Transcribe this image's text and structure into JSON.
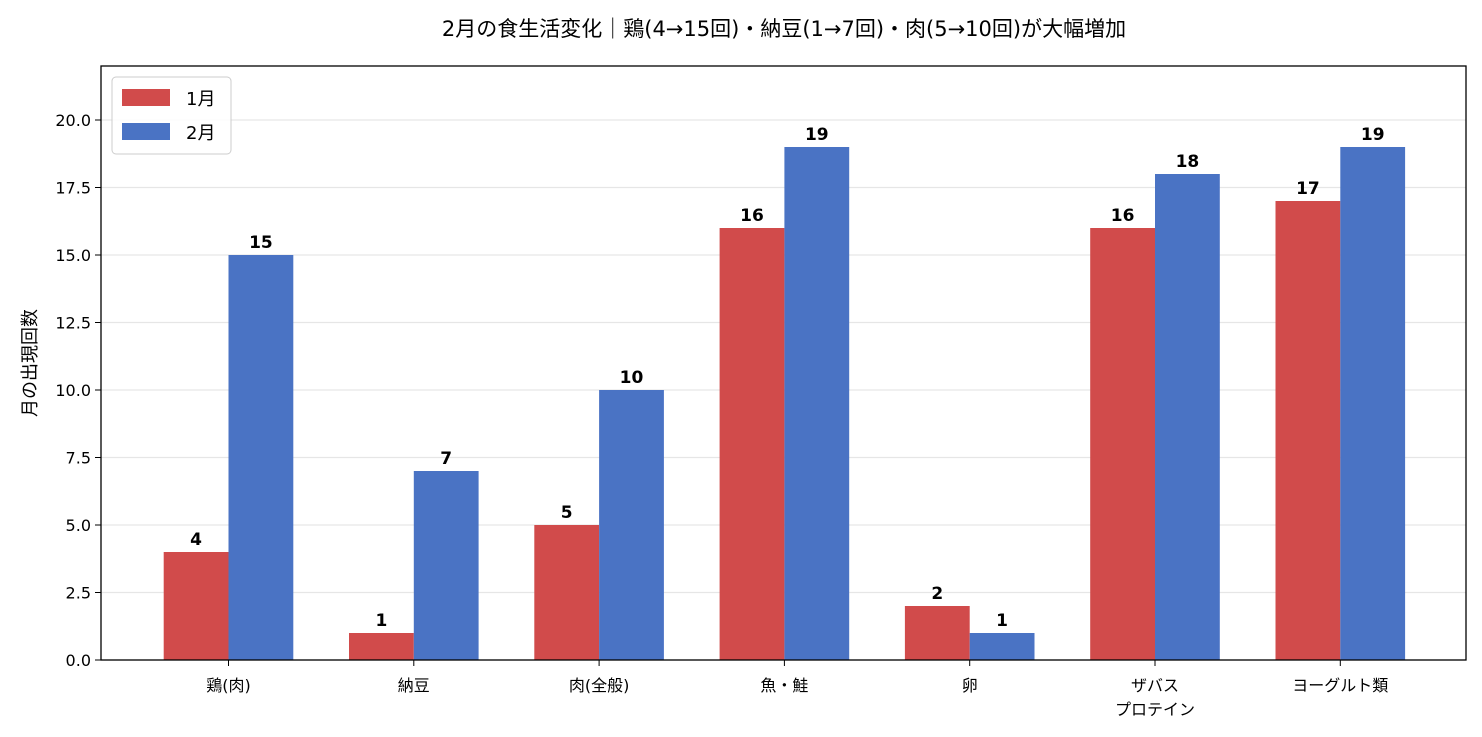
{
  "chart_data": {
    "type": "bar",
    "title": "2月の食生活変化｜鶏(4→15回)・納豆(1→7回)・肉(5→10回)が大幅増加",
    "xlabel": "",
    "ylabel": "月の出現回数",
    "categories": [
      "鶏(肉)",
      "納豆",
      "肉(全般)",
      "魚・鮭",
      "卵",
      "ザバス\nプロテイン",
      "ヨーグルト類"
    ],
    "series": [
      {
        "name": "1月",
        "color": "#d14b4b",
        "values": [
          4,
          1,
          5,
          16,
          2,
          16,
          17
        ]
      },
      {
        "name": "2月",
        "color": "#4a73c4",
        "values": [
          15,
          7,
          10,
          19,
          1,
          18,
          19
        ]
      }
    ],
    "ylim": [
      0,
      22
    ],
    "yticks": [
      "0.0",
      "2.5",
      "5.0",
      "7.5",
      "10.0",
      "12.5",
      "15.0",
      "17.5",
      "20.0"
    ],
    "grid": "horizontal",
    "legend": "top-left"
  }
}
